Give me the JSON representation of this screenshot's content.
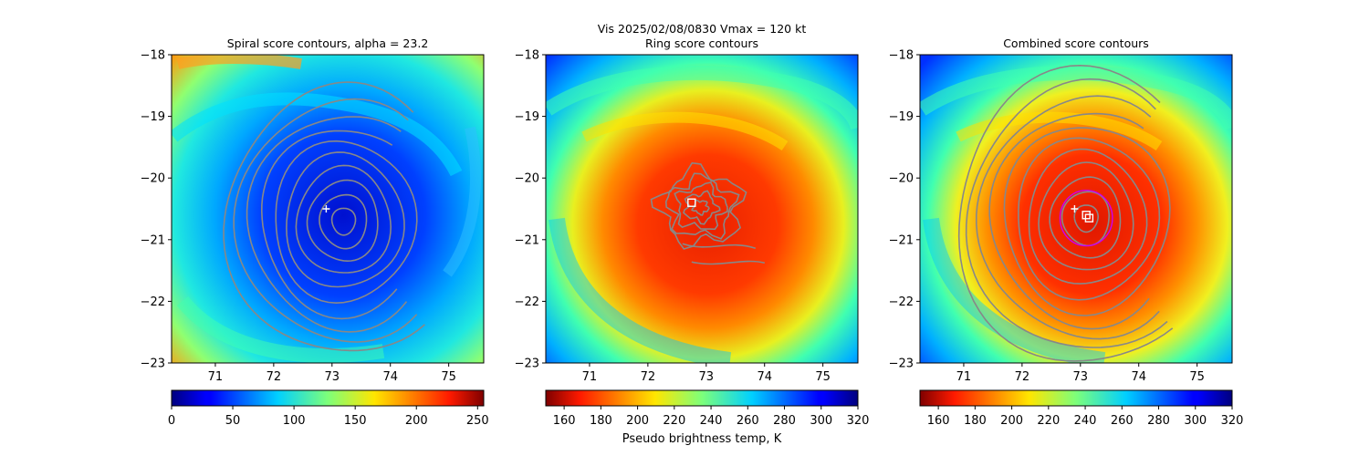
{
  "figure": {
    "suptitle": "Vis  2025/02/08/0830    Vmax = 120 kt"
  },
  "colors": {
    "contour": "#888888",
    "marker": "#ffffff",
    "ring": "#cc00ee",
    "axis": "#000000"
  },
  "chart_data": [
    {
      "type": "heatmap",
      "title": "Spiral score contours, alpha = 23.2",
      "colormap": "jet",
      "xlim": [
        70.25,
        75.6
      ],
      "ylim": [
        -23,
        -18
      ],
      "xticks": [
        "71",
        "72",
        "73",
        "74",
        "75"
      ],
      "xtick_values": [
        71,
        72,
        73,
        74,
        75
      ],
      "yticks": [
        "−18",
        "−19",
        "−20",
        "−21",
        "−22",
        "−23"
      ],
      "ytick_values": [
        -18,
        -19,
        -20,
        -21,
        -22,
        -23
      ],
      "colorbar": {
        "reversed": false,
        "vmin": 0,
        "vmax": 255,
        "ticks": [
          "0",
          "50",
          "100",
          "150",
          "200",
          "250"
        ],
        "tick_values": [
          0,
          50,
          100,
          150,
          200,
          250
        ],
        "label": ""
      },
      "center": [
        73.2,
        -20.7
      ],
      "markers": [
        {
          "kind": "plus",
          "lon": 72.9,
          "lat": -20.5
        }
      ],
      "contour_levels": 10,
      "ring": null
    },
    {
      "type": "heatmap",
      "title": "Ring score contours",
      "colormap": "jet",
      "xlim": [
        70.25,
        75.6
      ],
      "ylim": [
        -23,
        -18
      ],
      "xticks": [
        "71",
        "72",
        "73",
        "74",
        "75"
      ],
      "xtick_values": [
        71,
        72,
        73,
        74,
        75
      ],
      "yticks": [
        "−18",
        "−19",
        "−20",
        "−21",
        "−22",
        "−23"
      ],
      "ytick_values": [
        -18,
        -19,
        -20,
        -21,
        -22,
        -23
      ],
      "colorbar": {
        "reversed": true,
        "vmin": 150,
        "vmax": 320,
        "ticks": [
          "160",
          "180",
          "200",
          "220",
          "240",
          "260",
          "280",
          "300",
          "320"
        ],
        "tick_values": [
          160,
          180,
          200,
          220,
          240,
          260,
          280,
          300,
          320
        ],
        "label": "Pseudo brightness temp, K"
      },
      "center": [
        72.75,
        -20.4
      ],
      "markers": [
        {
          "kind": "square",
          "lon": 72.75,
          "lat": -20.4
        }
      ],
      "contour_levels": 5,
      "ring": null
    },
    {
      "type": "heatmap",
      "title": "Combined score contours",
      "colormap": "jet",
      "xlim": [
        70.25,
        75.6
      ],
      "ylim": [
        -23,
        -18
      ],
      "xticks": [
        "71",
        "72",
        "73",
        "74",
        "75"
      ],
      "xtick_values": [
        71,
        72,
        73,
        74,
        75
      ],
      "yticks": [
        "−18",
        "−19",
        "−20",
        "−21",
        "−22",
        "−23"
      ],
      "ytick_values": [
        -18,
        -19,
        -20,
        -21,
        -22,
        -23
      ],
      "colorbar": {
        "reversed": true,
        "vmin": 150,
        "vmax": 320,
        "ticks": [
          "160",
          "180",
          "200",
          "220",
          "240",
          "260",
          "280",
          "300",
          "320"
        ],
        "tick_values": [
          160,
          180,
          200,
          220,
          240,
          260,
          280,
          300,
          320
        ],
        "label": ""
      },
      "center": [
        73.1,
        -20.65
      ],
      "markers": [
        {
          "kind": "plus",
          "lon": 72.9,
          "lat": -20.5
        },
        {
          "kind": "square",
          "lon": 73.15,
          "lat": -20.65
        },
        {
          "kind": "square",
          "lon": 73.1,
          "lat": -20.6
        }
      ],
      "contour_levels": 11,
      "ring": {
        "lon": 73.1,
        "lat": -20.65,
        "radius_deg": 0.45
      }
    }
  ]
}
